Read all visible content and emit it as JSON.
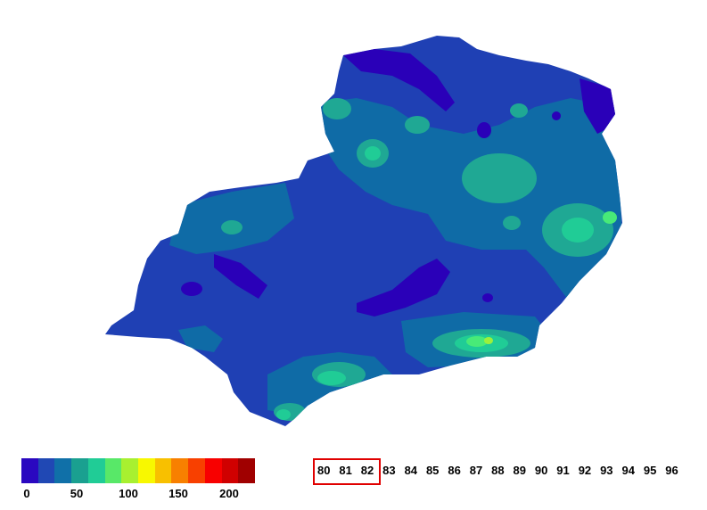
{
  "map": {
    "colors": {
      "deep": "#2a00b8",
      "base": "#1f40b4",
      "mid": "#0f6ba6",
      "teal": "#1fa894",
      "aqua": "#20cc96",
      "green": "#48ea78",
      "lime": "#9cf03c"
    }
  },
  "legend": {
    "colors": [
      "#2a08c0",
      "#2048b4",
      "#1070a8",
      "#1aa090",
      "#20cc96",
      "#58e868",
      "#a8f030",
      "#f8f800",
      "#f8c000",
      "#f88000",
      "#f84000",
      "#f80000",
      "#d00000",
      "#a00000"
    ],
    "tick_labels": [
      "0",
      "50",
      "100",
      "150",
      "200"
    ]
  },
  "years": {
    "labels": [
      "80",
      "81",
      "82",
      "83",
      "84",
      "85",
      "86",
      "87",
      "88",
      "89",
      "90",
      "91",
      "92",
      "93",
      "94",
      "95",
      "96"
    ],
    "highlighted": [
      "80",
      "81",
      "82"
    ]
  }
}
